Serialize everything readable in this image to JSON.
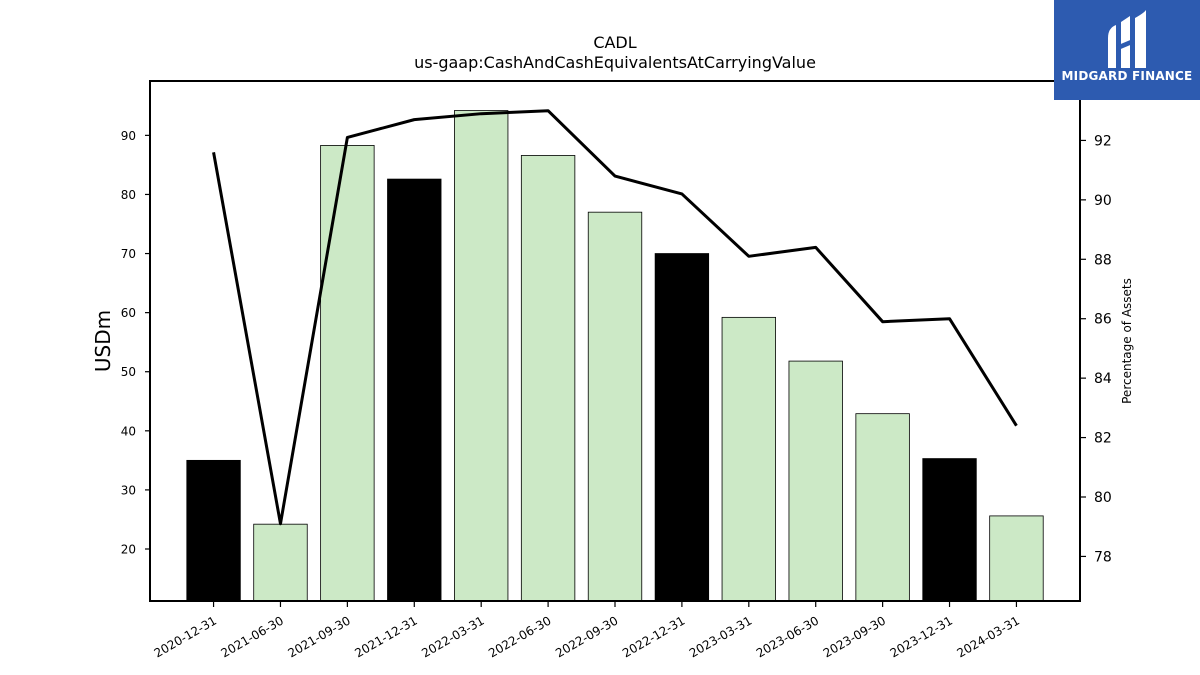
{
  "chart_data": {
    "type": "bar",
    "title": "CADL",
    "subtitle": "us-gaap:CashAndCashEquivalentsAtCarryingValue",
    "ylabel": "USDm",
    "y2label": "Percentage of Assets",
    "ylim": [
      11.2,
      99.2
    ],
    "y2lim": [
      76.5,
      94.0
    ],
    "yticks": [
      20,
      30,
      40,
      50,
      60,
      70,
      80,
      90
    ],
    "y2ticks": [
      78,
      80,
      82,
      84,
      86,
      88,
      90,
      92
    ],
    "categories": [
      "2020-12-31",
      "2021-06-30",
      "2021-09-30",
      "2021-12-31",
      "2022-03-31",
      "2022-06-30",
      "2022-09-30",
      "2022-12-31",
      "2023-03-31",
      "2023-06-30",
      "2023-09-30",
      "2023-12-31",
      "2024-03-31"
    ],
    "series": [
      {
        "values": [
          35.0,
          24.2,
          88.3,
          82.6,
          94.2,
          86.6,
          77.0,
          70.0,
          59.2,
          51.8,
          42.9,
          35.3,
          25.6
        ],
        "bar_colors": [
          "#000000",
          "#cce9c6",
          "#cce9c6",
          "#000000",
          "#cce9c6",
          "#cce9c6",
          "#cce9c6",
          "#000000",
          "#cce9c6",
          "#cce9c6",
          "#cce9c6",
          "#000000",
          "#cce9c6"
        ],
        "axis": "left"
      },
      {
        "type": "line",
        "values": [
          91.6,
          79.1,
          92.1,
          92.7,
          92.9,
          93.0,
          90.8,
          90.2,
          88.1,
          88.4,
          85.9,
          86.0,
          82.4
        ],
        "color": "#000000",
        "axis": "right"
      }
    ],
    "grid": false,
    "legend": "none"
  },
  "logo": {
    "text": "MIDGARD FINANCE",
    "background": "#2d5bb0",
    "icon": "midgard-logo-icon"
  }
}
